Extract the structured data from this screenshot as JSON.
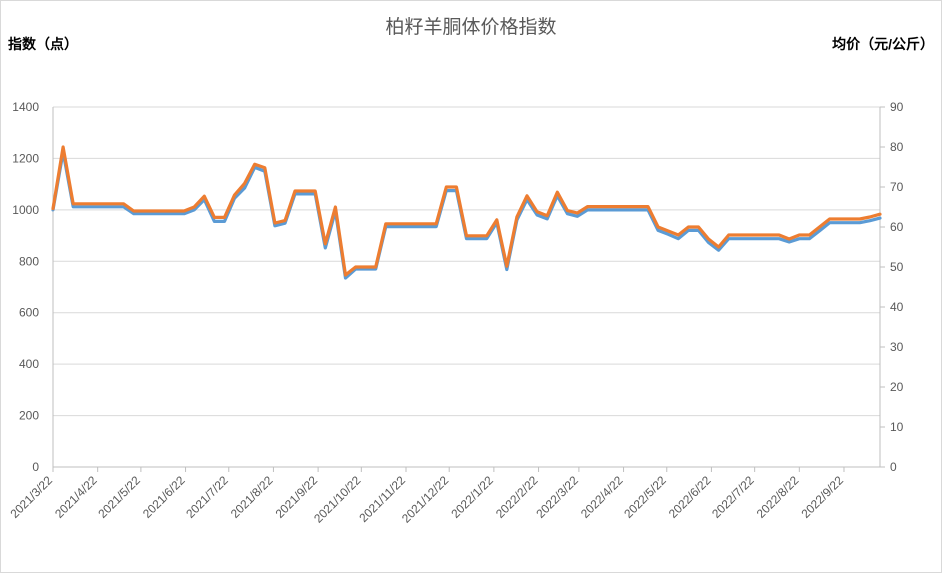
{
  "chart_data": {
    "type": "line",
    "title": "柏籽羊胴体价格指数",
    "y_left_label": "指数（点）",
    "y_right_label": "均价（元/公斤）",
    "y_left_lim": [
      0,
      1400
    ],
    "y_left_ticks": [
      "0",
      "200",
      "400",
      "600",
      "800",
      "1000",
      "1200",
      "1400"
    ],
    "y_right_lim": [
      0,
      90
    ],
    "y_right_ticks": [
      "0",
      "10",
      "20",
      "30",
      "40",
      "50",
      "60",
      "70",
      "80",
      "90"
    ],
    "x_tick_labels": [
      "2021/3/22",
      "2021/4/22",
      "2021/5/22",
      "2021/6/22",
      "2021/7/22",
      "2021/8/22",
      "2021/9/22",
      "2021/10/22",
      "2021/11/22",
      "2021/12/22",
      "2022/1/22",
      "2022/2/22",
      "2022/3/22",
      "2022/4/22",
      "2022/5/22",
      "2022/6/22",
      "2022/7/22",
      "2022/8/22",
      "2022/9/22"
    ],
    "grid": true,
    "legend": "none",
    "series": [
      {
        "axis": "left",
        "color": "#5b9bd5",
        "points": [
          [
            "2021-03-22",
            1000
          ],
          [
            "2021-03-29",
            1225
          ],
          [
            "2021-04-05",
            1012
          ],
          [
            "2021-04-12",
            1012
          ],
          [
            "2021-04-19",
            1012
          ],
          [
            "2021-04-26",
            1012
          ],
          [
            "2021-05-03",
            1012
          ],
          [
            "2021-05-10",
            1012
          ],
          [
            "2021-05-17",
            985
          ],
          [
            "2021-05-24",
            985
          ],
          [
            "2021-05-31",
            985
          ],
          [
            "2021-06-07",
            985
          ],
          [
            "2021-06-14",
            985
          ],
          [
            "2021-06-21",
            985
          ],
          [
            "2021-06-28",
            1000
          ],
          [
            "2021-07-05",
            1040
          ],
          [
            "2021-07-12",
            955
          ],
          [
            "2021-07-19",
            955
          ],
          [
            "2021-07-26",
            1045
          ],
          [
            "2021-08-02",
            1085
          ],
          [
            "2021-08-09",
            1165
          ],
          [
            "2021-08-16",
            1150
          ],
          [
            "2021-08-23",
            938
          ],
          [
            "2021-08-30",
            948
          ],
          [
            "2021-09-06",
            1062
          ],
          [
            "2021-09-13",
            1062
          ],
          [
            "2021-09-20",
            1062
          ],
          [
            "2021-09-27",
            852
          ],
          [
            "2021-10-04",
            995
          ],
          [
            "2021-10-11",
            735
          ],
          [
            "2021-10-18",
            770
          ],
          [
            "2021-10-25",
            770
          ],
          [
            "2021-11-01",
            770
          ],
          [
            "2021-11-08",
            935
          ],
          [
            "2021-11-15",
            935
          ],
          [
            "2021-11-22",
            935
          ],
          [
            "2021-11-29",
            935
          ],
          [
            "2021-12-06",
            935
          ],
          [
            "2021-12-13",
            935
          ],
          [
            "2021-12-20",
            1075
          ],
          [
            "2021-12-27",
            1075
          ],
          [
            "2022-01-03",
            888
          ],
          [
            "2022-01-10",
            888
          ],
          [
            "2022-01-17",
            888
          ],
          [
            "2022-01-24",
            950
          ],
          [
            "2022-01-31",
            768
          ],
          [
            "2022-02-07",
            960
          ],
          [
            "2022-02-14",
            1040
          ],
          [
            "2022-02-21",
            980
          ],
          [
            "2022-02-28",
            965
          ],
          [
            "2022-03-07",
            1055
          ],
          [
            "2022-03-14",
            985
          ],
          [
            "2022-03-21",
            975
          ],
          [
            "2022-03-28",
            1000
          ],
          [
            "2022-04-04",
            1000
          ],
          [
            "2022-04-11",
            1000
          ],
          [
            "2022-04-18",
            1000
          ],
          [
            "2022-04-25",
            1000
          ],
          [
            "2022-05-02",
            1000
          ],
          [
            "2022-05-09",
            1000
          ],
          [
            "2022-05-16",
            920
          ],
          [
            "2022-05-23",
            905
          ],
          [
            "2022-05-30",
            888
          ],
          [
            "2022-06-06",
            920
          ],
          [
            "2022-06-13",
            920
          ],
          [
            "2022-06-20",
            873
          ],
          [
            "2022-06-27",
            843
          ],
          [
            "2022-07-04",
            888
          ],
          [
            "2022-07-11",
            888
          ],
          [
            "2022-07-18",
            888
          ],
          [
            "2022-07-25",
            888
          ],
          [
            "2022-08-01",
            888
          ],
          [
            "2022-08-08",
            888
          ],
          [
            "2022-08-15",
            875
          ],
          [
            "2022-08-22",
            888
          ],
          [
            "2022-08-29",
            888
          ],
          [
            "2022-09-05",
            918
          ],
          [
            "2022-09-12",
            950
          ],
          [
            "2022-09-19",
            950
          ],
          [
            "2022-09-26",
            950
          ],
          [
            "2022-10-03",
            950
          ],
          [
            "2022-10-10",
            958
          ],
          [
            "2022-10-17",
            968
          ]
        ]
      },
      {
        "axis": "right",
        "color": "#ed7d31",
        "points": [
          [
            "2021-03-22",
            64.6
          ],
          [
            "2021-03-29",
            80.0
          ],
          [
            "2021-04-05",
            65.8
          ],
          [
            "2021-04-12",
            65.8
          ],
          [
            "2021-04-19",
            65.8
          ],
          [
            "2021-04-26",
            65.8
          ],
          [
            "2021-05-03",
            65.8
          ],
          [
            "2021-05-10",
            65.8
          ],
          [
            "2021-05-17",
            64.0
          ],
          [
            "2021-05-24",
            64.0
          ],
          [
            "2021-05-31",
            64.0
          ],
          [
            "2021-06-07",
            64.0
          ],
          [
            "2021-06-14",
            64.0
          ],
          [
            "2021-06-21",
            64.0
          ],
          [
            "2021-06-28",
            65.0
          ],
          [
            "2021-07-05",
            67.7
          ],
          [
            "2021-07-12",
            62.4
          ],
          [
            "2021-07-19",
            62.4
          ],
          [
            "2021-07-26",
            68.0
          ],
          [
            "2021-08-02",
            70.9
          ],
          [
            "2021-08-09",
            75.7
          ],
          [
            "2021-08-16",
            74.8
          ],
          [
            "2021-08-23",
            61.0
          ],
          [
            "2021-08-30",
            61.6
          ],
          [
            "2021-09-06",
            69.0
          ],
          [
            "2021-09-13",
            69.0
          ],
          [
            "2021-09-20",
            69.0
          ],
          [
            "2021-09-27",
            55.8
          ],
          [
            "2021-10-04",
            65.0
          ],
          [
            "2021-10-11",
            48.0
          ],
          [
            "2021-10-18",
            50.0
          ],
          [
            "2021-10-25",
            50.0
          ],
          [
            "2021-11-01",
            50.0
          ],
          [
            "2021-11-08",
            60.8
          ],
          [
            "2021-11-15",
            60.8
          ],
          [
            "2021-11-22",
            60.8
          ],
          [
            "2021-11-29",
            60.8
          ],
          [
            "2021-12-06",
            60.8
          ],
          [
            "2021-12-13",
            60.8
          ],
          [
            "2021-12-20",
            70.0
          ],
          [
            "2021-12-27",
            70.0
          ],
          [
            "2022-01-03",
            57.8
          ],
          [
            "2022-01-10",
            57.8
          ],
          [
            "2022-01-17",
            57.8
          ],
          [
            "2022-01-24",
            61.8
          ],
          [
            "2022-01-31",
            50.2
          ],
          [
            "2022-02-07",
            62.5
          ],
          [
            "2022-02-14",
            67.8
          ],
          [
            "2022-02-21",
            63.8
          ],
          [
            "2022-02-28",
            62.8
          ],
          [
            "2022-03-07",
            68.7
          ],
          [
            "2022-03-14",
            64.1
          ],
          [
            "2022-03-21",
            63.5
          ],
          [
            "2022-03-28",
            65.1
          ],
          [
            "2022-04-04",
            65.1
          ],
          [
            "2022-04-11",
            65.1
          ],
          [
            "2022-04-18",
            65.1
          ],
          [
            "2022-04-25",
            65.1
          ],
          [
            "2022-05-02",
            65.1
          ],
          [
            "2022-05-09",
            65.1
          ],
          [
            "2022-05-16",
            60.0
          ],
          [
            "2022-05-23",
            59.0
          ],
          [
            "2022-05-30",
            58.0
          ],
          [
            "2022-06-06",
            60.0
          ],
          [
            "2022-06-13",
            60.0
          ],
          [
            "2022-06-20",
            57.0
          ],
          [
            "2022-06-27",
            55.0
          ],
          [
            "2022-07-04",
            58.0
          ],
          [
            "2022-07-11",
            58.0
          ],
          [
            "2022-07-18",
            58.0
          ],
          [
            "2022-07-25",
            58.0
          ],
          [
            "2022-08-01",
            58.0
          ],
          [
            "2022-08-08",
            58.0
          ],
          [
            "2022-08-15",
            57.0
          ],
          [
            "2022-08-22",
            58.0
          ],
          [
            "2022-08-29",
            58.0
          ],
          [
            "2022-09-05",
            60.0
          ],
          [
            "2022-09-12",
            62.0
          ],
          [
            "2022-09-19",
            62.0
          ],
          [
            "2022-09-26",
            62.0
          ],
          [
            "2022-10-03",
            62.0
          ],
          [
            "2022-10-10",
            62.5
          ],
          [
            "2022-10-17",
            63.2
          ]
        ]
      }
    ]
  }
}
